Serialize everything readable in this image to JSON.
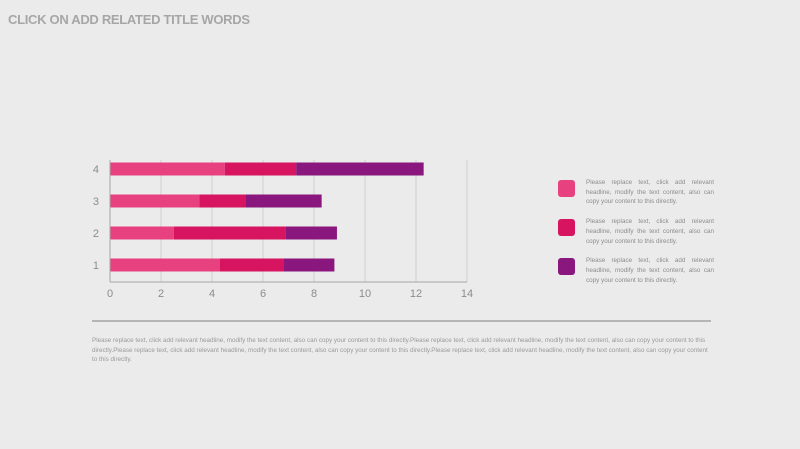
{
  "page": {
    "title": "CLICK ON ADD RELATED TITLE WORDS",
    "footer_text": "Please replace text, click add relevant headline, modify the text content, also can copy your content to this directly.Please replace text, click add relevant headline, modify the text content, also can copy your content to this directly.Please replace text, click add relevant headline, modify the text content, also can copy your content to this directly.Please replace text, click add relevant headline, modify the text content, also can copy your content to this directly."
  },
  "legend": [
    {
      "color": "#e8417f",
      "text": "Please replace text, click add relevant headline, modify the text content, also can copy your content to this directly."
    },
    {
      "color": "#d6145f",
      "text": "Please replace text, click add relevant headline, modify the text content, also can copy your content to this directly."
    },
    {
      "color": "#8a177d",
      "text": "Please replace text, click add relevant headline, modify the text content, also can copy your content to this directly."
    }
  ],
  "colors": {
    "background": "#ebebeb",
    "axis": "#a6a6a6",
    "tick_label": "#8c8c8c",
    "grid": "#cfcfcf"
  },
  "chart_data": {
    "type": "bar",
    "orientation": "horizontal",
    "stacked": true,
    "categories": [
      "1",
      "2",
      "3",
      "4"
    ],
    "series": [
      {
        "color": "#e8417f",
        "values": [
          4.3,
          2.5,
          3.5,
          4.5
        ]
      },
      {
        "color": "#d6145f",
        "values": [
          2.5,
          4.4,
          1.8,
          2.8
        ]
      },
      {
        "color": "#8a177d",
        "values": [
          2.0,
          2.0,
          3.0,
          5.0
        ]
      }
    ],
    "xlim": [
      0,
      14
    ],
    "xticks": [
      "0",
      "2",
      "4",
      "6",
      "8",
      "10",
      "12",
      "14"
    ],
    "grid": true,
    "legend_position": "right"
  }
}
